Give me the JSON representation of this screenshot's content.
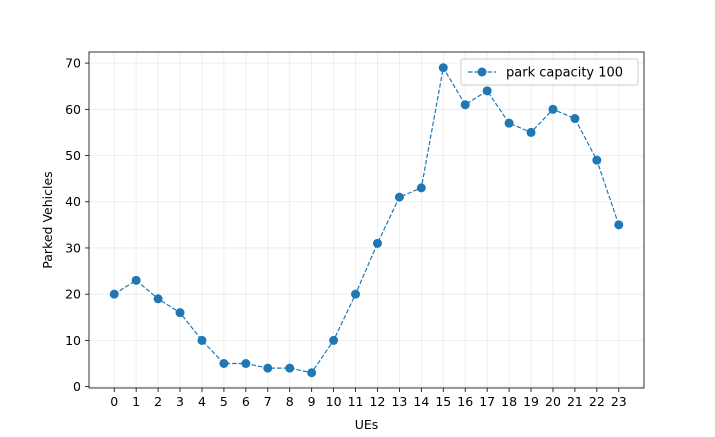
{
  "chart_data": {
    "type": "line",
    "title": "",
    "xlabel": "UEs",
    "ylabel": "Parked Vehicles",
    "categories": [
      "0",
      "1",
      "2",
      "3",
      "4",
      "5",
      "6",
      "7",
      "8",
      "9",
      "10",
      "11",
      "12",
      "13",
      "14",
      "15",
      "16",
      "17",
      "18",
      "19",
      "20",
      "21",
      "22",
      "23"
    ],
    "x": [
      0,
      1,
      2,
      3,
      4,
      5,
      6,
      7,
      8,
      9,
      10,
      11,
      12,
      13,
      14,
      15,
      16,
      17,
      18,
      19,
      20,
      21,
      22,
      23
    ],
    "series": [
      {
        "name": "park capacity 100",
        "values": [
          20,
          23,
          19,
          16,
          10,
          5,
          5,
          4,
          4,
          3,
          10,
          20,
          31,
          41,
          43,
          69,
          61,
          64,
          57,
          55,
          60,
          58,
          49,
          35
        ],
        "color": "#1f77b4",
        "line_style": "dashed",
        "marker": "circle"
      }
    ],
    "xlim": [
      -1.15,
      24.15
    ],
    "ylim": [
      -0.3,
      72.4
    ],
    "yticks": [
      0,
      10,
      20,
      30,
      40,
      50,
      60,
      70
    ],
    "grid": true,
    "legend": "upper right"
  }
}
